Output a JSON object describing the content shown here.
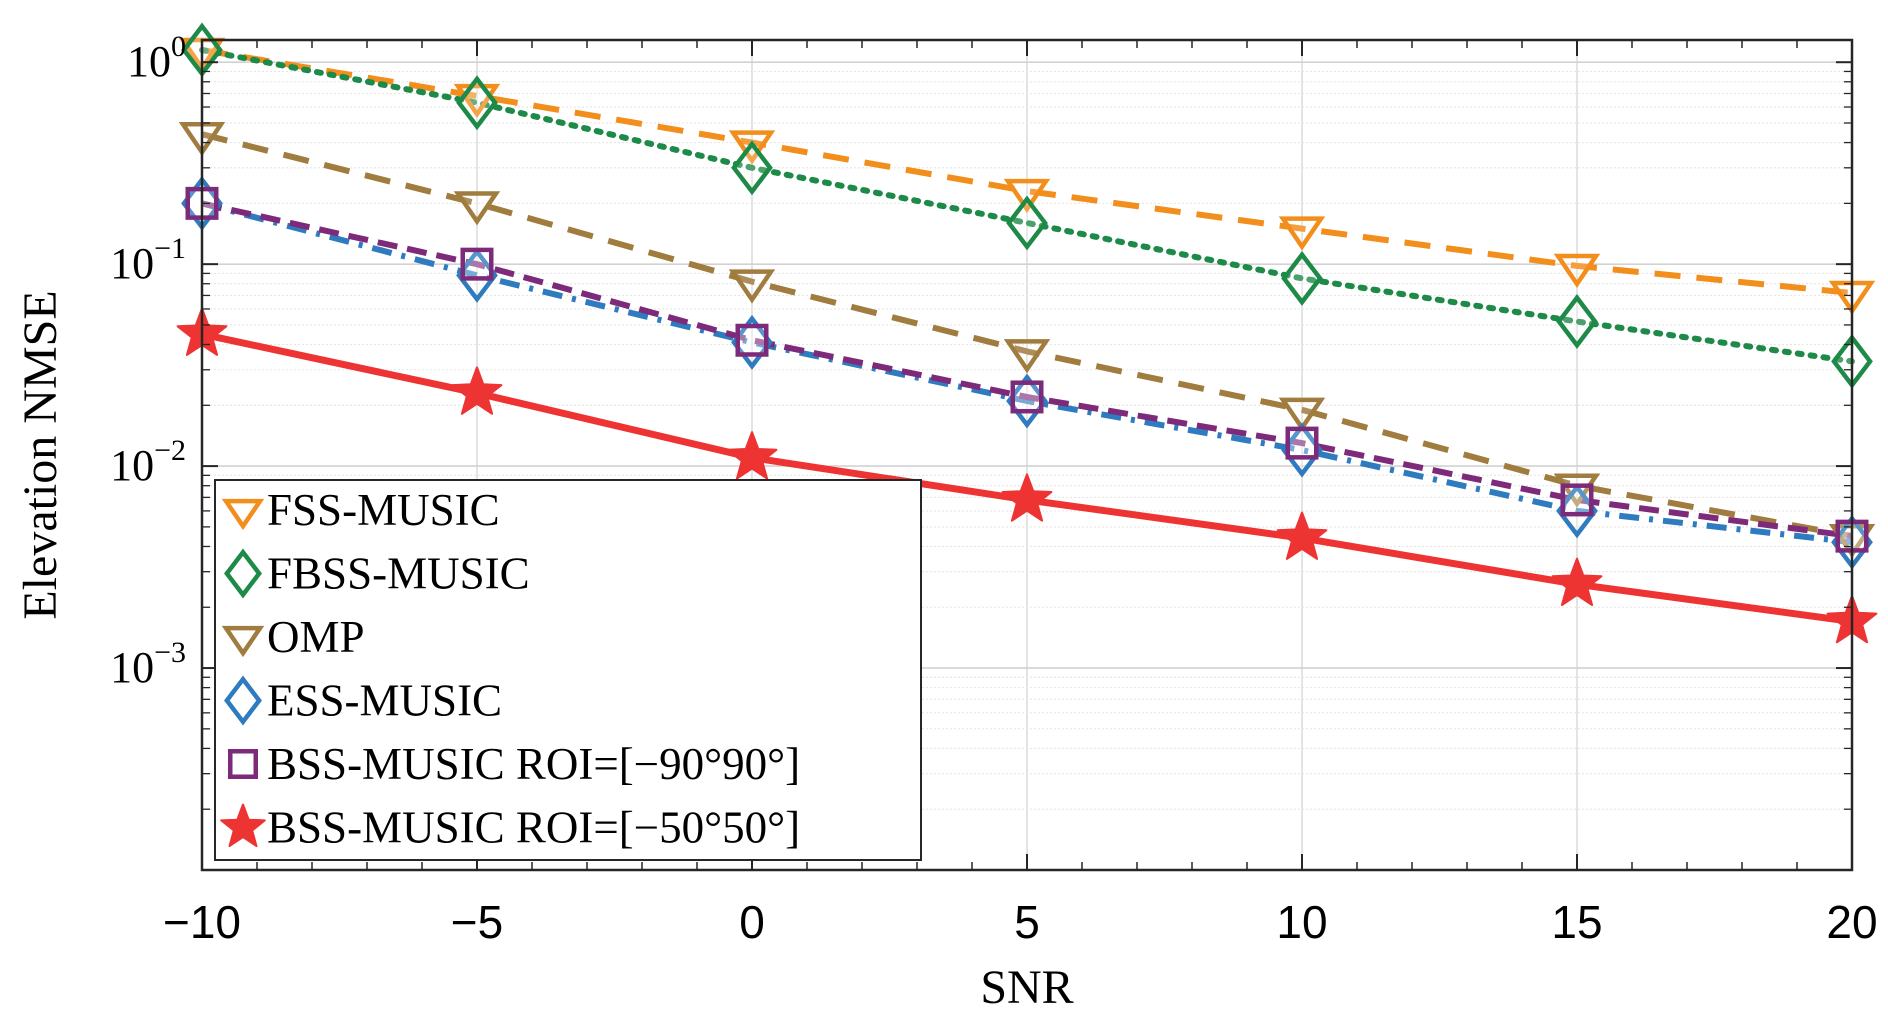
{
  "chart_data": {
    "type": "line",
    "title": "",
    "xlabel": "SNR",
    "ylabel": "Elevation NMSE",
    "x": [
      -10,
      -5,
      0,
      5,
      10,
      15,
      20
    ],
    "xlim": [
      -10,
      20
    ],
    "xticks": [
      -10,
      -5,
      0,
      5,
      10,
      15,
      20
    ],
    "xtick_labels": [
      "−10",
      "−5",
      "0",
      "5",
      "10",
      "15",
      "20"
    ],
    "yscale": "log",
    "ylim": [
      0.0001,
      1.3
    ],
    "yticks": [
      {
        "value": 1,
        "base": "10",
        "exp": "0"
      },
      {
        "value": 0.1,
        "base": "10",
        "exp": "−1"
      },
      {
        "value": 0.01,
        "base": "10",
        "exp": "−2"
      },
      {
        "value": 0.001,
        "base": "10",
        "exp": "−3"
      }
    ],
    "grid": true,
    "legend_position": "bottom-left",
    "series": [
      {
        "name": "FSS-MUSIC",
        "color": "#F28E1C",
        "dash": "dashed",
        "marker": "triangle-down",
        "values": [
          1.15,
          0.68,
          0.4,
          0.23,
          0.15,
          0.098,
          0.072
        ]
      },
      {
        "name": "FBSS-MUSIC",
        "color": "#1E8A48",
        "dash": "dotted",
        "marker": "diamond",
        "values": [
          1.15,
          0.63,
          0.3,
          0.16,
          0.085,
          0.052,
          0.033
        ]
      },
      {
        "name": "OMP",
        "color": "#A07C3F",
        "dash": "dashed",
        "marker": "triangle-down",
        "values": [
          0.44,
          0.2,
          0.082,
          0.037,
          0.019,
          0.008,
          0.0045
        ]
      },
      {
        "name": "ESS-MUSIC",
        "color": "#2F7BBF",
        "dash": "dashdot",
        "marker": "diamond",
        "values": [
          0.2,
          0.088,
          0.041,
          0.021,
          0.012,
          0.006,
          0.0042
        ]
      },
      {
        "name": "BSS-MUSIC ROI=[−90°90°]",
        "color": "#7D2A7A",
        "dash": "dashed-fine",
        "marker": "square",
        "values": [
          0.2,
          0.1,
          0.042,
          0.022,
          0.013,
          0.0068,
          0.0045
        ]
      },
      {
        "name": "BSS-MUSIC ROI=[−50°50°]",
        "color": "#EE3333",
        "dash": "solid",
        "marker": "star",
        "values": [
          0.045,
          0.023,
          0.011,
          0.0068,
          0.0044,
          0.0026,
          0.0017
        ]
      }
    ]
  }
}
